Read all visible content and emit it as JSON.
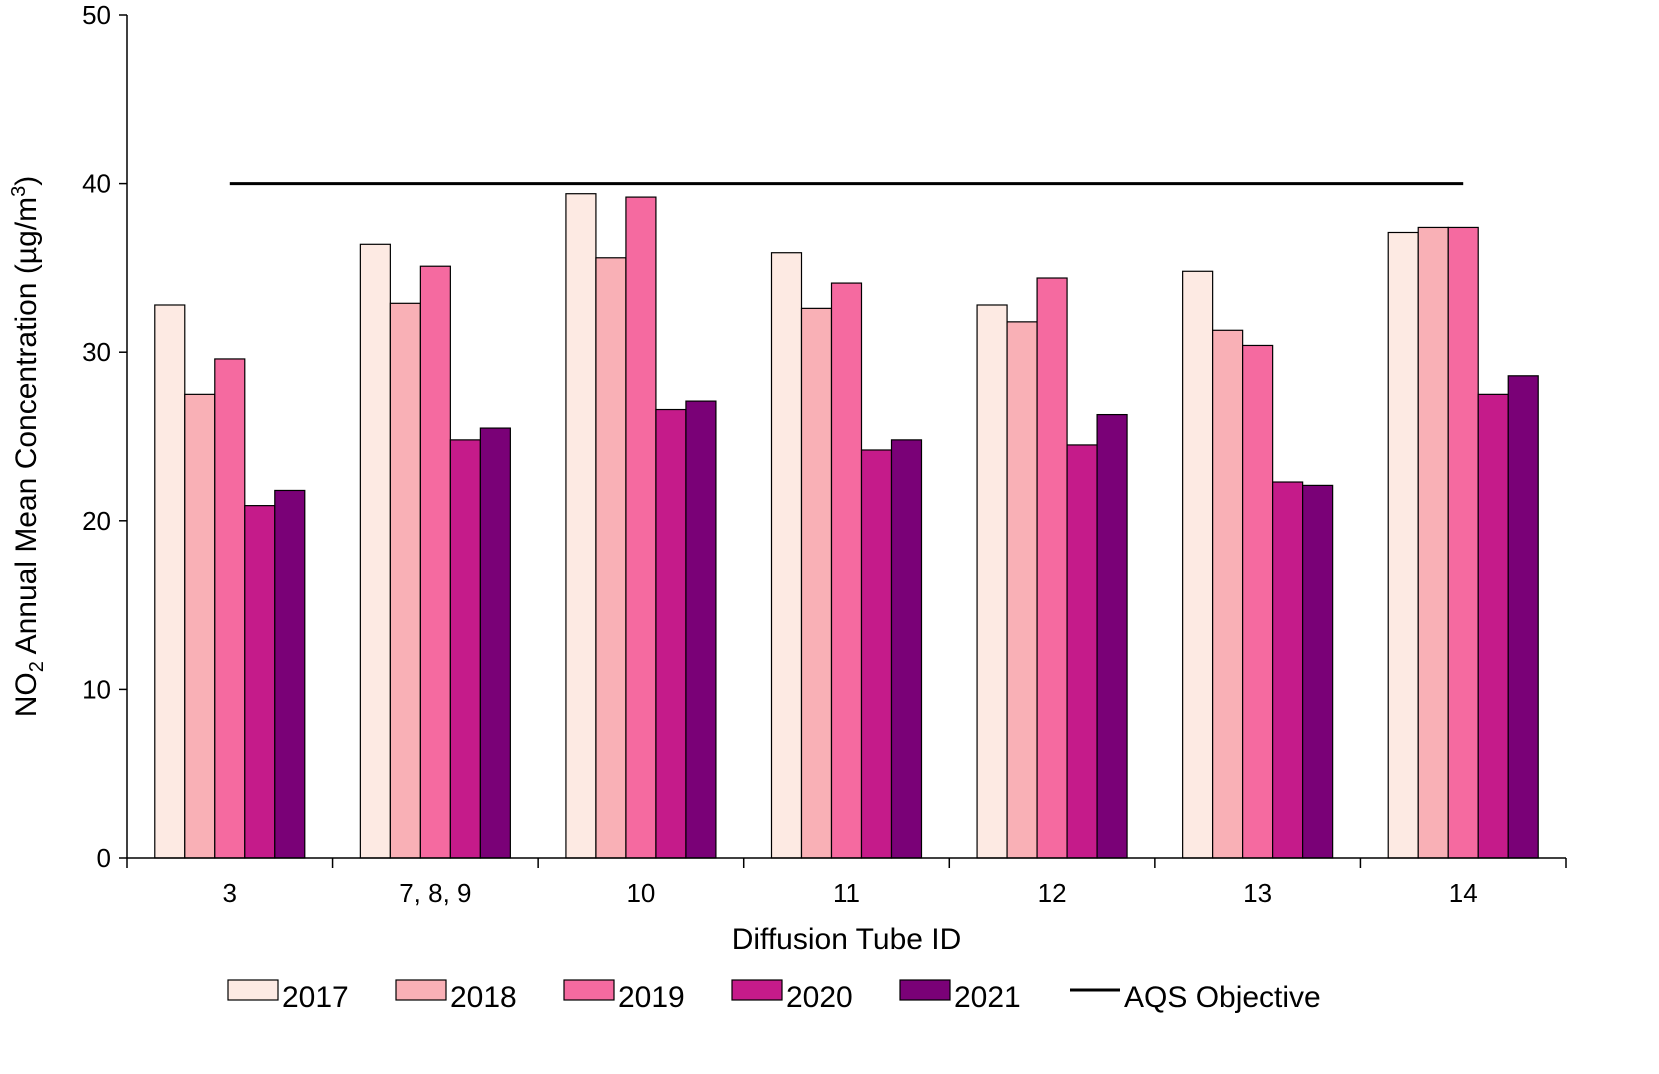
{
  "chart_data": {
    "type": "bar",
    "title": "",
    "xlabel": "Diffusion Tube ID",
    "ylabel": {
      "prefix": "NO",
      "sub": "2",
      "middle": " Annual Mean Concentration (µg/m",
      "sup": "3",
      "suffix": ")"
    },
    "ylim": [
      0,
      50
    ],
    "yticks": [
      "0",
      "10",
      "20",
      "30",
      "40",
      "50"
    ],
    "categories": [
      "3",
      "7, 8, 9",
      "10",
      "11",
      "12",
      "13",
      "14"
    ],
    "series": [
      {
        "name": "2017",
        "color": "#fdeae3",
        "values": [
          32.8,
          36.4,
          39.4,
          35.9,
          32.8,
          34.8,
          37.1
        ]
      },
      {
        "name": "2018",
        "color": "#f9b0b6",
        "values": [
          27.5,
          32.9,
          35.6,
          32.6,
          31.8,
          31.3,
          37.4
        ]
      },
      {
        "name": "2019",
        "color": "#f56aa0",
        "values": [
          29.6,
          35.1,
          39.2,
          34.1,
          34.4,
          30.4,
          37.4
        ]
      },
      {
        "name": "2020",
        "color": "#c51b8a",
        "values": [
          20.9,
          24.8,
          26.6,
          24.2,
          24.5,
          22.3,
          27.5
        ]
      },
      {
        "name": "2021",
        "color": "#7a0177",
        "values": [
          21.8,
          25.5,
          27.1,
          24.8,
          26.3,
          22.1,
          28.6
        ]
      }
    ],
    "reference_line": {
      "name": "AQS Objective",
      "value": 40,
      "color": "#000000"
    },
    "legend_position": "bottom",
    "grid": false
  }
}
